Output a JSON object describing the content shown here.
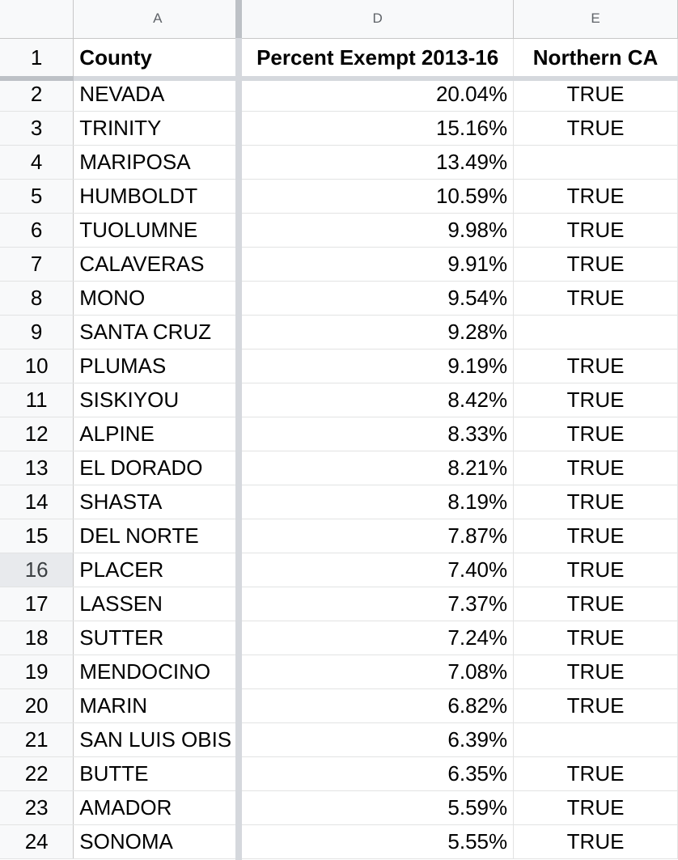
{
  "columns": {
    "a": "A",
    "d": "D",
    "e": "E"
  },
  "header_row": {
    "num": "1",
    "county": "County",
    "percent": "Percent Exempt 2013-16",
    "northern": "Northern CA"
  },
  "rows": [
    {
      "num": "2",
      "county": "NEVADA",
      "percent": "20.04%",
      "northern": "TRUE"
    },
    {
      "num": "3",
      "county": "TRINITY",
      "percent": "15.16%",
      "northern": "TRUE"
    },
    {
      "num": "4",
      "county": "MARIPOSA",
      "percent": "13.49%",
      "northern": ""
    },
    {
      "num": "5",
      "county": "HUMBOLDT",
      "percent": "10.59%",
      "northern": "TRUE"
    },
    {
      "num": "6",
      "county": "TUOLUMNE",
      "percent": "9.98%",
      "northern": "TRUE"
    },
    {
      "num": "7",
      "county": "CALAVERAS",
      "percent": "9.91%",
      "northern": "TRUE"
    },
    {
      "num": "8",
      "county": "MONO",
      "percent": "9.54%",
      "northern": "TRUE"
    },
    {
      "num": "9",
      "county": "SANTA CRUZ",
      "percent": "9.28%",
      "northern": ""
    },
    {
      "num": "10",
      "county": "PLUMAS",
      "percent": "9.19%",
      "northern": "TRUE"
    },
    {
      "num": "11",
      "county": "SISKIYOU",
      "percent": "8.42%",
      "northern": "TRUE"
    },
    {
      "num": "12",
      "county": "ALPINE",
      "percent": "8.33%",
      "northern": "TRUE"
    },
    {
      "num": "13",
      "county": "EL DORADO",
      "percent": "8.21%",
      "northern": "TRUE"
    },
    {
      "num": "14",
      "county": "SHASTA",
      "percent": "8.19%",
      "northern": "TRUE"
    },
    {
      "num": "15",
      "county": "DEL NORTE",
      "percent": "7.87%",
      "northern": "TRUE"
    },
    {
      "num": "16",
      "county": "PLACER",
      "percent": "7.40%",
      "northern": "TRUE",
      "active": true
    },
    {
      "num": "17",
      "county": "LASSEN",
      "percent": "7.37%",
      "northern": "TRUE"
    },
    {
      "num": "18",
      "county": "SUTTER",
      "percent": "7.24%",
      "northern": "TRUE"
    },
    {
      "num": "19",
      "county": "MENDOCINO",
      "percent": "7.08%",
      "northern": "TRUE"
    },
    {
      "num": "20",
      "county": "MARIN",
      "percent": "6.82%",
      "northern": "TRUE"
    },
    {
      "num": "21",
      "county": "SAN LUIS OBIS",
      "percent": "6.39%",
      "northern": ""
    },
    {
      "num": "22",
      "county": "BUTTE",
      "percent": "6.35%",
      "northern": "TRUE"
    },
    {
      "num": "23",
      "county": "AMADOR",
      "percent": "5.59%",
      "northern": "TRUE"
    },
    {
      "num": "24",
      "county": "SONOMA",
      "percent": "5.55%",
      "northern": "TRUE"
    }
  ]
}
